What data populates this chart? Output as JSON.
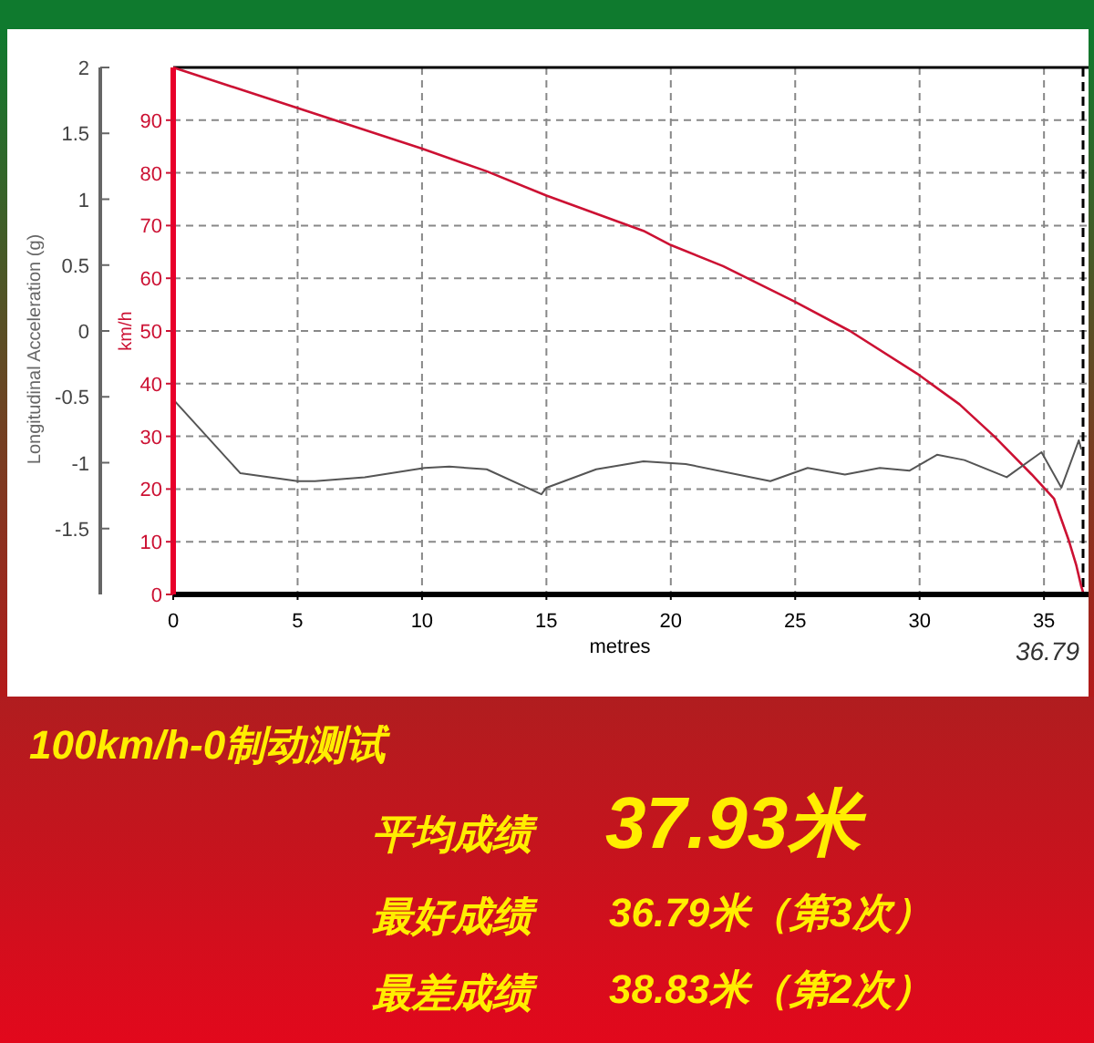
{
  "chart_data": [
    {
      "type": "line",
      "xlabel": "metres",
      "ylabel": "km/h",
      "y2label": "Longitudinal Acceleration (g)",
      "xlim": [
        0,
        36.79
      ],
      "xticks": [
        0,
        5,
        10,
        15,
        20,
        25,
        30,
        35
      ],
      "ylim": [
        0,
        100
      ],
      "yticks": [
        0,
        10,
        20,
        30,
        40,
        50,
        60,
        70,
        80,
        90
      ],
      "y2lim": [
        -2,
        2
      ],
      "y2ticks": [
        -1.5,
        -1,
        -0.5,
        0,
        0.5,
        1,
        1.5,
        2
      ],
      "grid": true,
      "line_style": "solid",
      "marker": "none",
      "ref_lines": [
        {
          "axis": "x",
          "value": 36.57,
          "color": "#000000",
          "line_style": "dashed"
        }
      ],
      "series": [
        {
          "color": "#cc1133",
          "x": [
            0,
            5,
            10,
            12.6,
            15,
            18.9,
            20,
            22.1,
            25,
            27.2,
            29.9,
            31.6,
            33,
            34.5,
            35.4,
            36,
            36.3,
            36.5,
            36.6
          ],
          "values": [
            100,
            92.3,
            84.6,
            80.3,
            75.7,
            69,
            66.3,
            62.3,
            55.5,
            50,
            41.9,
            36.1,
            30,
            22.8,
            18.2,
            10.2,
            5.5,
            1.5,
            0
          ]
        },
        {
          "color": "#555555",
          "axis": "y2",
          "x": [
            0,
            2.7,
            5,
            5.7,
            7.7,
            10.1,
            11.1,
            12.6,
            14.8,
            15,
            17,
            18.9,
            20.6,
            24,
            25.5,
            27,
            28.4,
            29.6,
            30.7,
            31.8,
            33.5,
            34.9,
            35.7,
            36.4,
            36.5
          ],
          "values": [
            -0.52,
            -1.08,
            -1.14,
            -1.14,
            -1.11,
            -1.04,
            -1.03,
            -1.05,
            -1.24,
            -1.19,
            -1.05,
            -0.99,
            -1.01,
            -1.14,
            -1.04,
            -1.09,
            -1.04,
            -1.06,
            -0.94,
            -0.98,
            -1.11,
            -0.92,
            -1.19,
            -0.83,
            -0.9
          ]
        }
      ],
      "annotations": [
        {
          "text": "36.79",
          "x": 36.79,
          "y": 0
        }
      ]
    },
    {
      "type": "other",
      "title": "100km/h-0制动测试",
      "annotations": [
        "平均成绩",
        "37.93米",
        "最好成绩",
        "36.79米（第3次）",
        "最差成绩",
        "38.83米（第2次）"
      ]
    }
  ]
}
